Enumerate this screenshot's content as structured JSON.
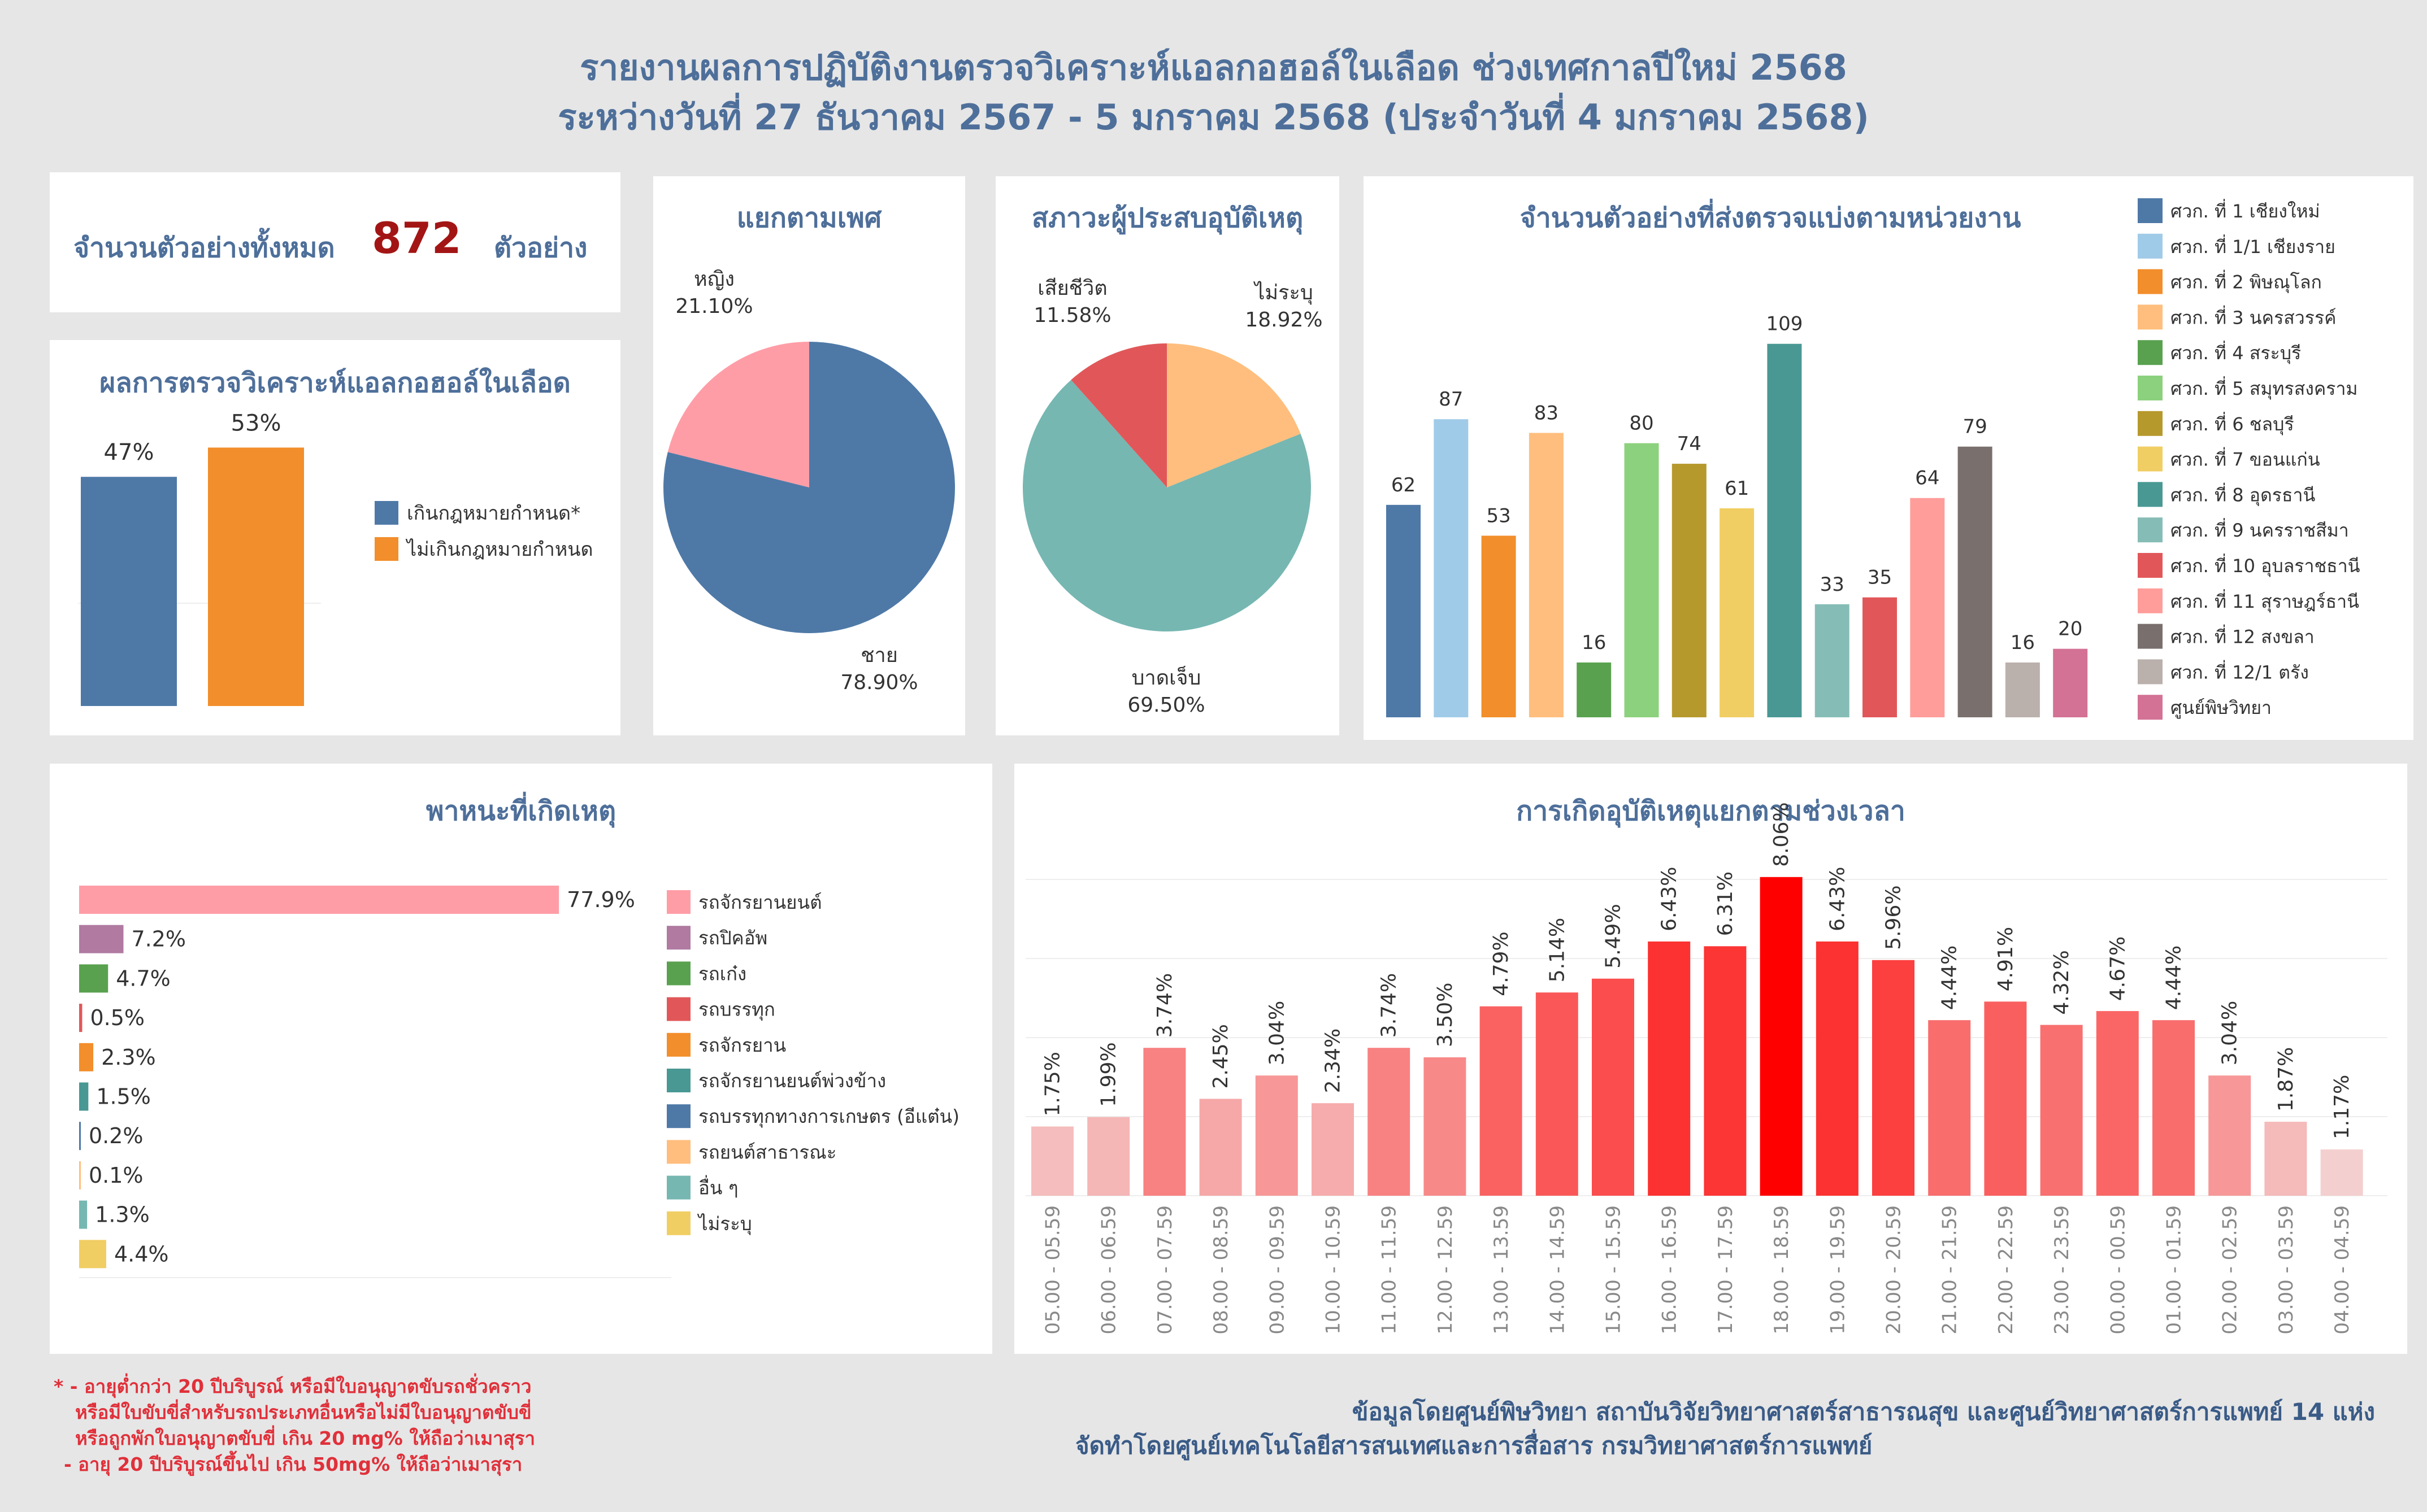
{
  "header": {
    "title_line1": "รายงานผลการปฏิบัติงานตรวจวิเคราะห์แอลกอฮอล์ในเลือด ช่วงเทศกาลปีใหม่ 2568",
    "title_line2": "ระหว่างวันที่ 27 ธันวาคม 2567 - 5 มกราคม 2568 (ประจำวันที่ 4 มกราคม 2568)"
  },
  "summary": {
    "label": "จำนวนตัวอย่างทั้งหมด",
    "value": "872",
    "unit": "ตัวอย่าง",
    "value_color": "#a31515"
  },
  "colors": {
    "title": "#4e6f9a",
    "panel_bg": "#ffffff",
    "page_bg": "#e6e6e6"
  },
  "chart_data": [
    {
      "id": "alcohol-result",
      "type": "bar",
      "title": "ผลการตรวจวิเคราะห์แอลกอฮอล์ในเลือด",
      "categories": [
        "เกินกฎหมายกำหนด*",
        "ไม่เกินกฎหมายกำหนด"
      ],
      "values": [
        47,
        53
      ],
      "value_labels": [
        "47%",
        "53%"
      ],
      "colors": [
        "#4e79a7",
        "#f28e2b"
      ],
      "ylim": [
        0,
        60
      ],
      "legend": "right"
    },
    {
      "id": "gender",
      "type": "pie",
      "title": "แยกตามเพศ",
      "slices": [
        {
          "name": "หญิง",
          "value": 21.1,
          "label": "21.10%",
          "color": "#ff9da7"
        },
        {
          "name": "ชาย",
          "value": 78.9,
          "label": "78.90%",
          "color": "#4e79a7"
        }
      ]
    },
    {
      "id": "victim-status",
      "type": "pie",
      "title": "สภาวะผู้ประสบอุบัติเหตุ",
      "slices": [
        {
          "name": "ไม่ระบุ",
          "value": 18.92,
          "label": "18.92%",
          "color": "#ffbe7d"
        },
        {
          "name": "บาดเจ็บ",
          "value": 69.5,
          "label": "69.50%",
          "color": "#76b7b2"
        },
        {
          "name": "เสียชีวิต",
          "value": 11.58,
          "label": "11.58%",
          "color": "#e15759"
        }
      ]
    },
    {
      "id": "samples-by-unit",
      "type": "bar",
      "title": "จำนวนตัวอย่างที่ส่งตรวจแบ่งตามหน่วยงาน",
      "categories": [
        "ศวก. ที่ 1 เชียงใหม่",
        "ศวก. ที่ 1/1 เชียงราย",
        "ศวก. ที่ 2 พิษณุโลก",
        "ศวก. ที่ 3 นครสวรรค์",
        "ศวก. ที่ 4 สระบุรี",
        "ศวก. ที่ 5 สมุทรสงคราม",
        "ศวก. ที่ 6 ชลบุรี",
        "ศวก. ที่ 7 ขอนแก่น",
        "ศวก. ที่ 8 อุดรธานี",
        "ศวก. ที่ 9 นครราชสีมา",
        "ศวก. ที่ 10 อุบลราชธานี",
        "ศวก. ที่ 11 สุราษฎร์ธานี",
        "ศวก. ที่ 12 สงขลา",
        "ศวก. ที่ 12/1 ตรัง",
        "ศูนย์พิษวิทยา"
      ],
      "values": [
        62,
        87,
        53,
        83,
        16,
        80,
        74,
        61,
        109,
        33,
        35,
        64,
        79,
        16,
        20
      ],
      "colors": [
        "#4e79a7",
        "#a0cbe8",
        "#f28e2b",
        "#ffbe7d",
        "#59a14f",
        "#8cd17d",
        "#b6992d",
        "#f1ce63",
        "#499894",
        "#86bcb6",
        "#e15759",
        "#ff9d9a",
        "#79706e",
        "#bab0ac",
        "#d37295"
      ],
      "ylim": [
        0,
        120
      ],
      "legend": "right"
    },
    {
      "id": "vehicles",
      "type": "bar",
      "orientation": "horizontal",
      "title": "พาหนะที่เกิดเหตุ",
      "categories": [
        "รถจักรยานยนต์",
        "รถปิคอัพ",
        "รถเก๋ง",
        "รถบรรทุก",
        "รถจักรยาน",
        "รถจักรยานยนต์พ่วงข้าง",
        "รถบรรทุกทางการเกษตร (อีแต๋น)",
        "รถยนต์สาธารณะ",
        "อื่น ๆ",
        "ไม่ระบุ"
      ],
      "bar_labels": [
        "77.9%",
        "7.2%",
        "4.7%",
        "0.5%",
        "2.3%",
        "1.5%",
        "0.2%",
        "0.1%",
        "1.3%",
        "4.4%"
      ],
      "values": [
        77.9,
        7.2,
        4.7,
        0.5,
        2.3,
        1.5,
        0.2,
        0.1,
        1.3,
        4.4
      ],
      "colors": [
        "#ff9da7",
        "#b07aa1",
        "#59a14f",
        "#e15759",
        "#f28e2b",
        "#499894",
        "#4e79a7",
        "#ffbe7d",
        "#76b7b2",
        "#f1ce63"
      ],
      "xlim": [
        0,
        100
      ],
      "legend": "right"
    },
    {
      "id": "accidents-by-time",
      "type": "bar",
      "title": "การเกิดอุบัติเหตุแยกตามช่วงเวลา",
      "categories": [
        "05.00 - 05.59",
        "06.00 - 06.59",
        "07.00 - 07.59",
        "08.00 - 08.59",
        "09.00 - 09.59",
        "10.00 - 10.59",
        "11.00 - 11.59",
        "12.00 - 12.59",
        "13.00 - 13.59",
        "14.00 - 14.59",
        "15.00 - 15.59",
        "16.00 - 16.59",
        "17.00 - 17.59",
        "18.00 - 18.59",
        "19.00 - 19.59",
        "20.00 - 20.59",
        "21.00 - 21.59",
        "22.00 - 22.59",
        "23.00 - 23.59",
        "00.00 - 00.59",
        "01.00 - 01.59",
        "02.00 - 02.59",
        "03.00 - 03.59",
        "04.00 - 04.59"
      ],
      "values": [
        1.75,
        1.99,
        3.74,
        2.45,
        3.04,
        2.34,
        3.74,
        3.5,
        4.79,
        5.14,
        5.49,
        6.43,
        6.31,
        8.06,
        6.43,
        5.96,
        4.44,
        4.91,
        4.32,
        4.67,
        4.44,
        3.04,
        1.87,
        1.17
      ],
      "value_labels": [
        "1.75%",
        "1.99%",
        "3.74%",
        "2.45%",
        "3.04%",
        "2.34%",
        "3.74%",
        "3.50%",
        "4.79%",
        "5.14%",
        "5.49%",
        "6.43%",
        "6.31%",
        "8.06%",
        "6.43%",
        "5.96%",
        "4.44%",
        "4.91%",
        "4.32%",
        "4.67%",
        "4.44%",
        "3.04%",
        "1.87%",
        "1.17%"
      ],
      "color_scale": [
        "#f2f2f2",
        "#ff0000"
      ],
      "ylim": [
        0,
        9
      ],
      "grid": true
    }
  ],
  "footnote": {
    "red_lines": [
      "* - อายุต่ำกว่า 20 ปีบริบูรณ์ หรือมีใบอนุญาตขับรถชั่วคราว",
      "หรือมีใบขับขี่สำหรับรถประเภทอื่นหรือไม่มีใบอนุญาตขับขี่",
      "หรือถูกพักใบอนุญาตขับขี่ เกิน 20 mg% ให้ถือว่าเมาสุรา",
      "- อายุ 20 ปีบริบูรณ์ขึ้นไป เกิน 50mg% ให้ถือว่าเมาสุรา"
    ],
    "source_line1": "ข้อมูลโดยศูนย์พิษวิทยา สถาบันวิจัยวิทยาศาสตร์สาธารณสุข และศูนย์วิทยาศาสตร์การแพทย์ 14 แห่ง",
    "source_line2": "จัดทำโดยศูนย์เทคโนโลยีสารสนเทศและการสื่อสาร กรมวิทยาศาสตร์การแพทย์"
  }
}
